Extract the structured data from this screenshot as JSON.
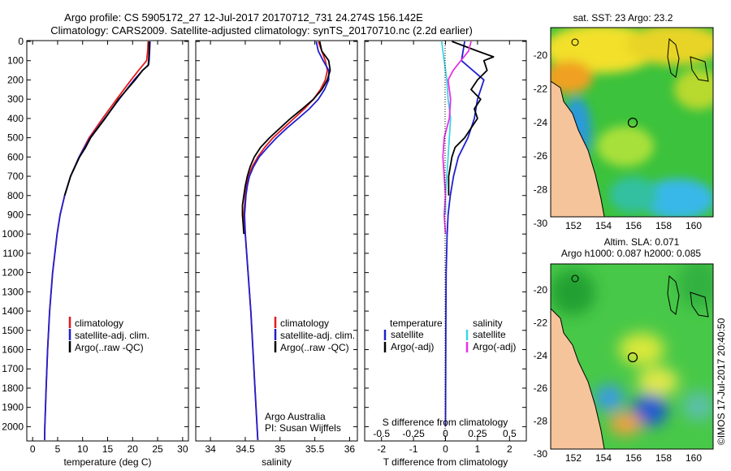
{
  "header": {
    "line1": "Argo profile: CS 5905172_27 12-Jul-2017 20170712_731 24.274S 156.142E",
    "line2": "Climatology: CARS2009. Satellite-adjusted climatology: synTS_20170710.nc (2.2d earlier)"
  },
  "colors": {
    "climatology": "#e41a1c",
    "satellite": "#1f1fcf",
    "argo": "#000000",
    "sat_salinity": "#3fd5e6",
    "argo_salinity": "#e632e6",
    "land": "#f6c49a"
  },
  "legends": {
    "temp": [
      "climatology",
      "satellite-adj. clim.",
      "Argo(..raw -QC)"
    ],
    "sal": [
      "climatology",
      "satellite-adj. clim.",
      "Argo(..raw -QC)"
    ],
    "diff_head_t": "temperature",
    "diff_head_s": "salinity",
    "diff_t": [
      "satellite",
      "Argo(-adj)"
    ],
    "diff_s": [
      "satellite",
      "Argo(-adj)"
    ]
  },
  "credits": {
    "org": "Argo Australia",
    "pi": "PI: Susan Wijffels",
    "imos": "©IMOS 17-Jul-2017 20:40:50"
  },
  "maps": {
    "sst_title": "sat. SST: 23 Argo: 23.2",
    "sla_title1": "Altim. SLA: 0.071",
    "sla_title2": "Argo h1000: 0.087 h2000: 0.085",
    "lat_ticks": [
      "-20",
      "-22",
      "-24",
      "-26",
      "-28",
      "-30"
    ],
    "lon_ticks": [
      "152",
      "154",
      "156",
      "158",
      "160"
    ]
  },
  "chart_data": [
    {
      "type": "line",
      "title": "",
      "xlabel": "temperature (deg C)",
      "ylabel": "",
      "xlim": [
        -1,
        31
      ],
      "ylim": [
        2070,
        0
      ],
      "y_inverted": true,
      "xticks": [
        "0",
        "5",
        "10",
        "15",
        "20",
        "25",
        "30"
      ],
      "yticks": [
        "0",
        "100",
        "200",
        "300",
        "400",
        "500",
        "600",
        "700",
        "800",
        "900",
        "1000",
        "1100",
        "1200",
        "1300",
        "1400",
        "1500",
        "1600",
        "1700",
        "1800",
        "1900",
        "2000"
      ],
      "series": [
        {
          "name": "climatology",
          "depth": [
            0,
            50,
            100,
            150,
            200,
            300,
            400,
            500,
            600,
            700,
            800,
            900,
            1000,
            1200,
            1400,
            1600,
            1800,
            2000,
            2070
          ],
          "values": [
            23.1,
            23.0,
            22.8,
            21.2,
            19.7,
            16.8,
            14.0,
            11.3,
            9.3,
            7.6,
            6.4,
            5.5,
            4.9,
            4.0,
            3.4,
            3.0,
            2.7,
            2.45,
            2.4
          ]
        },
        {
          "name": "satellite-adj. clim.",
          "depth": [
            0,
            50,
            100,
            120,
            150,
            200,
            300,
            400,
            500,
            600,
            700,
            800,
            900,
            1000,
            1200,
            1400,
            1600,
            1800,
            2000,
            2070
          ],
          "values": [
            23.5,
            23.4,
            23.3,
            23.2,
            22.0,
            20.3,
            17.3,
            14.4,
            11.5,
            9.3,
            7.6,
            6.4,
            5.5,
            4.9,
            4.0,
            3.4,
            3.0,
            2.7,
            2.45,
            2.4
          ]
        },
        {
          "name": "Argo(..raw -QC)",
          "depth": [
            0,
            50,
            100,
            125,
            150,
            200,
            300,
            400,
            500,
            550,
            600,
            700,
            800
          ],
          "values": [
            23.3,
            23.3,
            23.2,
            23.1,
            22.0,
            20.5,
            17.2,
            14.5,
            11.6,
            10.6,
            9.4,
            7.6,
            6.4
          ]
        }
      ]
    },
    {
      "type": "line",
      "title": "",
      "xlabel": "salinity",
      "ylabel": "",
      "xlim": [
        33.8,
        36.1
      ],
      "ylim": [
        2070,
        0
      ],
      "y_inverted": true,
      "xticks": [
        "34",
        "34.5",
        "35",
        "35.5",
        "36"
      ],
      "series": [
        {
          "name": "climatology",
          "depth": [
            0,
            50,
            100,
            150,
            200,
            250,
            300,
            350,
            400,
            450,
            500,
            550,
            600,
            650,
            700,
            750,
            800,
            850,
            900,
            1000,
            1100,
            1200,
            1400,
            1600,
            1800,
            2000,
            2070
          ],
          "values": [
            35.55,
            35.6,
            35.65,
            35.68,
            35.65,
            35.58,
            35.48,
            35.35,
            35.2,
            35.05,
            34.9,
            34.78,
            34.68,
            34.6,
            34.55,
            34.52,
            34.5,
            34.49,
            34.48,
            34.5,
            34.52,
            34.54,
            34.58,
            34.61,
            34.64,
            34.67,
            34.68
          ]
        },
        {
          "name": "satellite-adj. clim.",
          "depth": [
            0,
            50,
            100,
            150,
            200,
            250,
            300,
            350,
            400,
            450,
            500,
            550,
            600,
            650,
            700,
            750,
            800,
            850,
            900,
            1000,
            1100,
            1200,
            1400,
            1600,
            1800,
            2000,
            2070
          ],
          "values": [
            35.52,
            35.55,
            35.62,
            35.7,
            35.7,
            35.64,
            35.55,
            35.42,
            35.26,
            35.1,
            34.95,
            34.82,
            34.7,
            34.62,
            34.56,
            34.53,
            34.51,
            34.5,
            34.49,
            34.5,
            34.52,
            34.54,
            34.58,
            34.61,
            34.64,
            34.67,
            34.68
          ]
        },
        {
          "name": "Argo(..raw -QC)",
          "depth": [
            0,
            50,
            100,
            150,
            200,
            250,
            300,
            350,
            400,
            450,
            500,
            550,
            600,
            650,
            700,
            750,
            800,
            850,
            900,
            950,
            1000
          ],
          "values": [
            35.57,
            35.6,
            35.7,
            35.72,
            35.68,
            35.6,
            35.48,
            35.32,
            35.15,
            35.0,
            34.85,
            34.72,
            34.63,
            34.57,
            34.53,
            34.5,
            34.48,
            34.46,
            34.46,
            34.47,
            34.48
          ]
        }
      ]
    },
    {
      "type": "line",
      "title": "",
      "xlabel": "T difference from climatology",
      "ylabel": "",
      "xlabel_top": "S difference from climatology",
      "xlim": [
        -2.5,
        2.5
      ],
      "ylim": [
        2070,
        0
      ],
      "y_inverted": true,
      "xticks": [
        "-2",
        "-1",
        "0",
        "1",
        "2"
      ],
      "xticks_top": [
        "-0.5",
        "-0.25",
        "0",
        "0.25",
        "0.5"
      ],
      "series": [
        {
          "name": "temperature satellite",
          "depth": [
            0,
            100,
            200,
            300,
            400,
            500,
            600,
            700,
            800,
            900,
            1000,
            1200,
            1500,
            2000
          ],
          "values": [
            0.6,
            0.5,
            1.2,
            1.0,
            0.9,
            0.7,
            0.4,
            0.25,
            0.15,
            0.08,
            0.05,
            0.02,
            0.01,
            0.0
          ]
        },
        {
          "name": "temperature Argo(-adj)",
          "depth": [
            0,
            50,
            80,
            100,
            150,
            200,
            250,
            300,
            350,
            400,
            450,
            500,
            550,
            600,
            700,
            800
          ],
          "values": [
            0.2,
            1.0,
            1.5,
            1.2,
            1.3,
            1.0,
            0.8,
            1.1,
            0.9,
            1.0,
            0.8,
            0.6,
            0.3,
            0.2,
            0.1,
            0.1
          ]
        },
        {
          "name": "salinity satellite",
          "depth": [
            0,
            50,
            100,
            150,
            200,
            300,
            400,
            500,
            600,
            700,
            800,
            900
          ],
          "values": [
            -0.03,
            -0.02,
            -0.01,
            0.0,
            0.01,
            0.02,
            0.04,
            0.03,
            0.02,
            0.01,
            0.0,
            0.0
          ]
        },
        {
          "name": "salinity Argo(-adj)",
          "depth": [
            0,
            50,
            100,
            150,
            200,
            300,
            400,
            500,
            600,
            700,
            800,
            900,
            1000
          ],
          "values": [
            0.2,
            0.18,
            0.12,
            0.06,
            0.02,
            0.04,
            0.03,
            -0.01,
            -0.02,
            -0.01,
            0.0,
            -0.01,
            0.0
          ]
        }
      ]
    }
  ]
}
